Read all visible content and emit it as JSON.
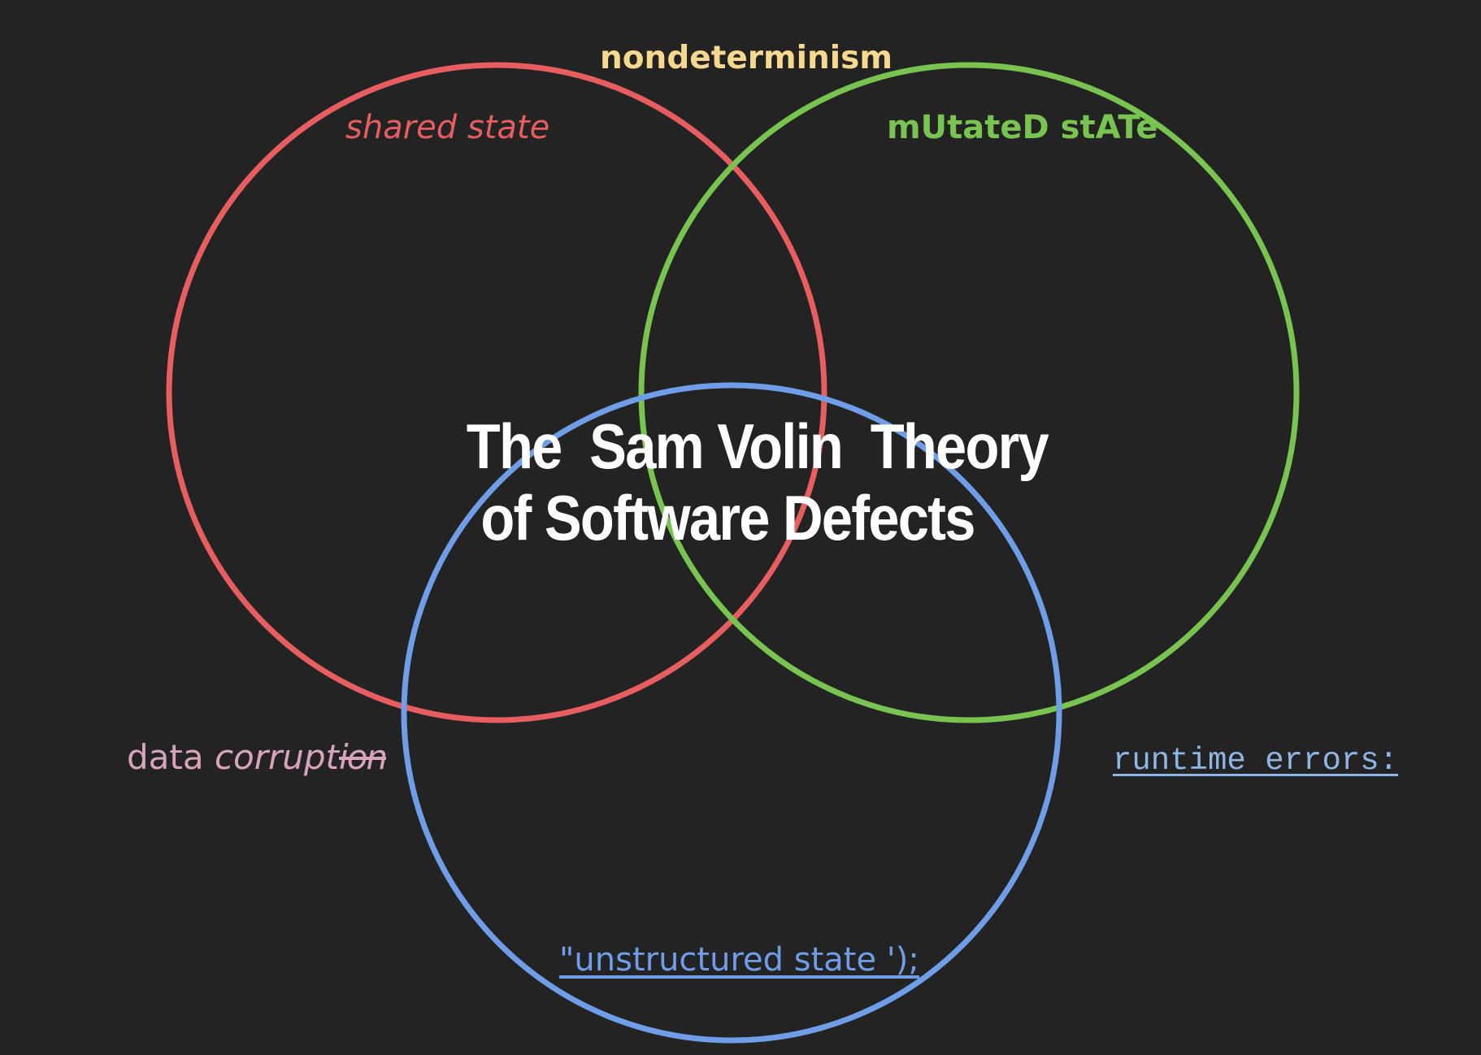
{
  "diagram": {
    "title_line_1": "The  Sam Volin  Theory",
    "title_line_2": "of Software Defects",
    "sets": [
      {
        "label": "shared state",
        "color": "#e85d60"
      },
      {
        "label": "mUtateD stATe",
        "color": "#79c451"
      },
      {
        "label": "\"unstructured state ');",
        "color": "#6f9de8"
      }
    ],
    "intersections": {
      "shared_and_mutated": {
        "label": "nondeterminism",
        "color": "#f6d98f"
      },
      "shared_and_unstructured": {
        "label_plain": "data ",
        "label_italic": "corrupt",
        "label_glitch": "ion",
        "color": "#d7a3bd"
      },
      "mutated_and_unstructured": {
        "label": "runtime errors:",
        "color": "#8fb6e6"
      }
    },
    "background": "#232323"
  }
}
